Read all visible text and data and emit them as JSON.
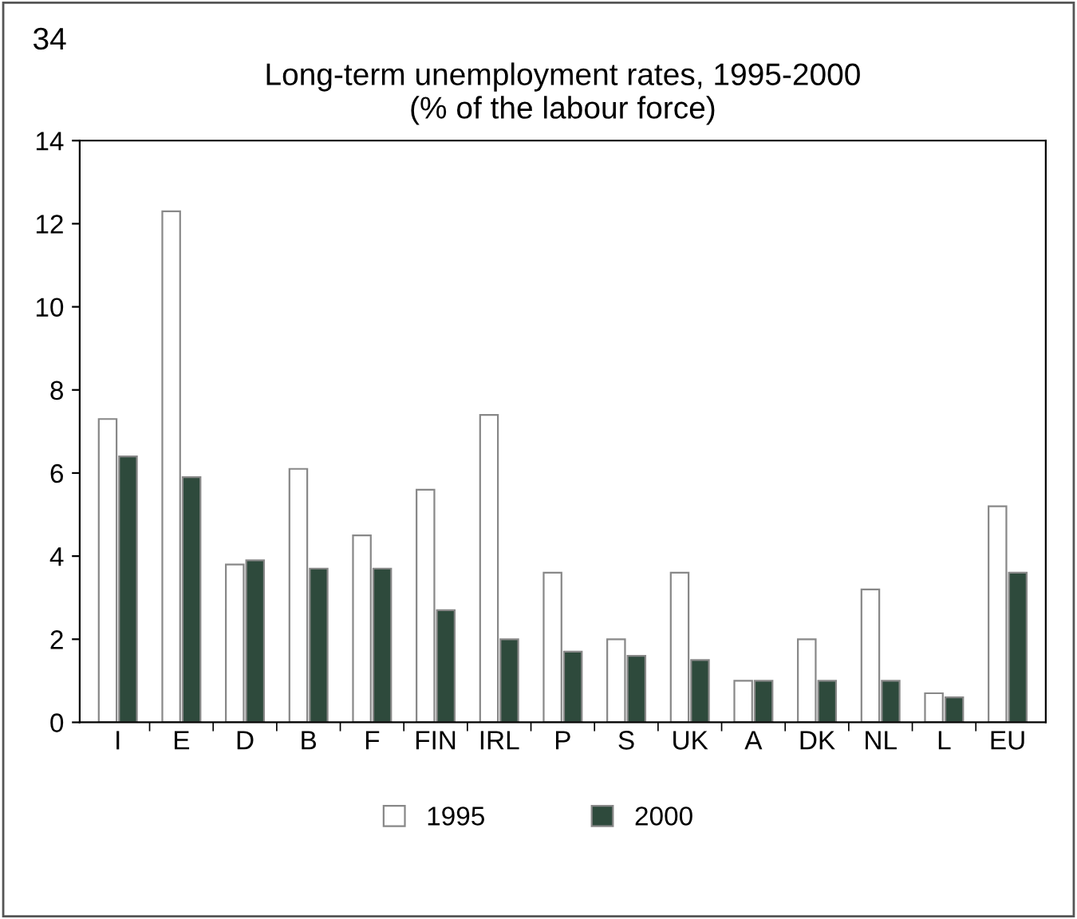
{
  "chart_data": {
    "type": "bar",
    "title": "Long-term unemployment rates, 1995-2000\n(% of the labour force)",
    "annotations": [
      "34"
    ],
    "categories": [
      "I",
      "E",
      "D",
      "B",
      "F",
      "FIN",
      "IRL",
      "P",
      "S",
      "UK",
      "A",
      "DK",
      "NL",
      "L",
      "EU"
    ],
    "series": [
      {
        "name": "1995",
        "color": "#ffffff",
        "values": [
          7.3,
          12.3,
          3.8,
          6.1,
          4.5,
          5.6,
          7.4,
          3.6,
          2.0,
          3.6,
          1.0,
          2.0,
          3.2,
          0.7,
          5.2
        ]
      },
      {
        "name": "2000",
        "color": "#2e4a3c",
        "values": [
          6.4,
          5.9,
          3.9,
          3.7,
          3.7,
          2.7,
          2.0,
          1.7,
          1.6,
          1.5,
          1.0,
          1.0,
          1.0,
          0.6,
          3.6
        ]
      }
    ],
    "ylim": [
      0,
      14
    ],
    "yticks": [
      0,
      2,
      4,
      6,
      8,
      10,
      12,
      14
    ],
    "grid": false,
    "legend": "bottom"
  }
}
